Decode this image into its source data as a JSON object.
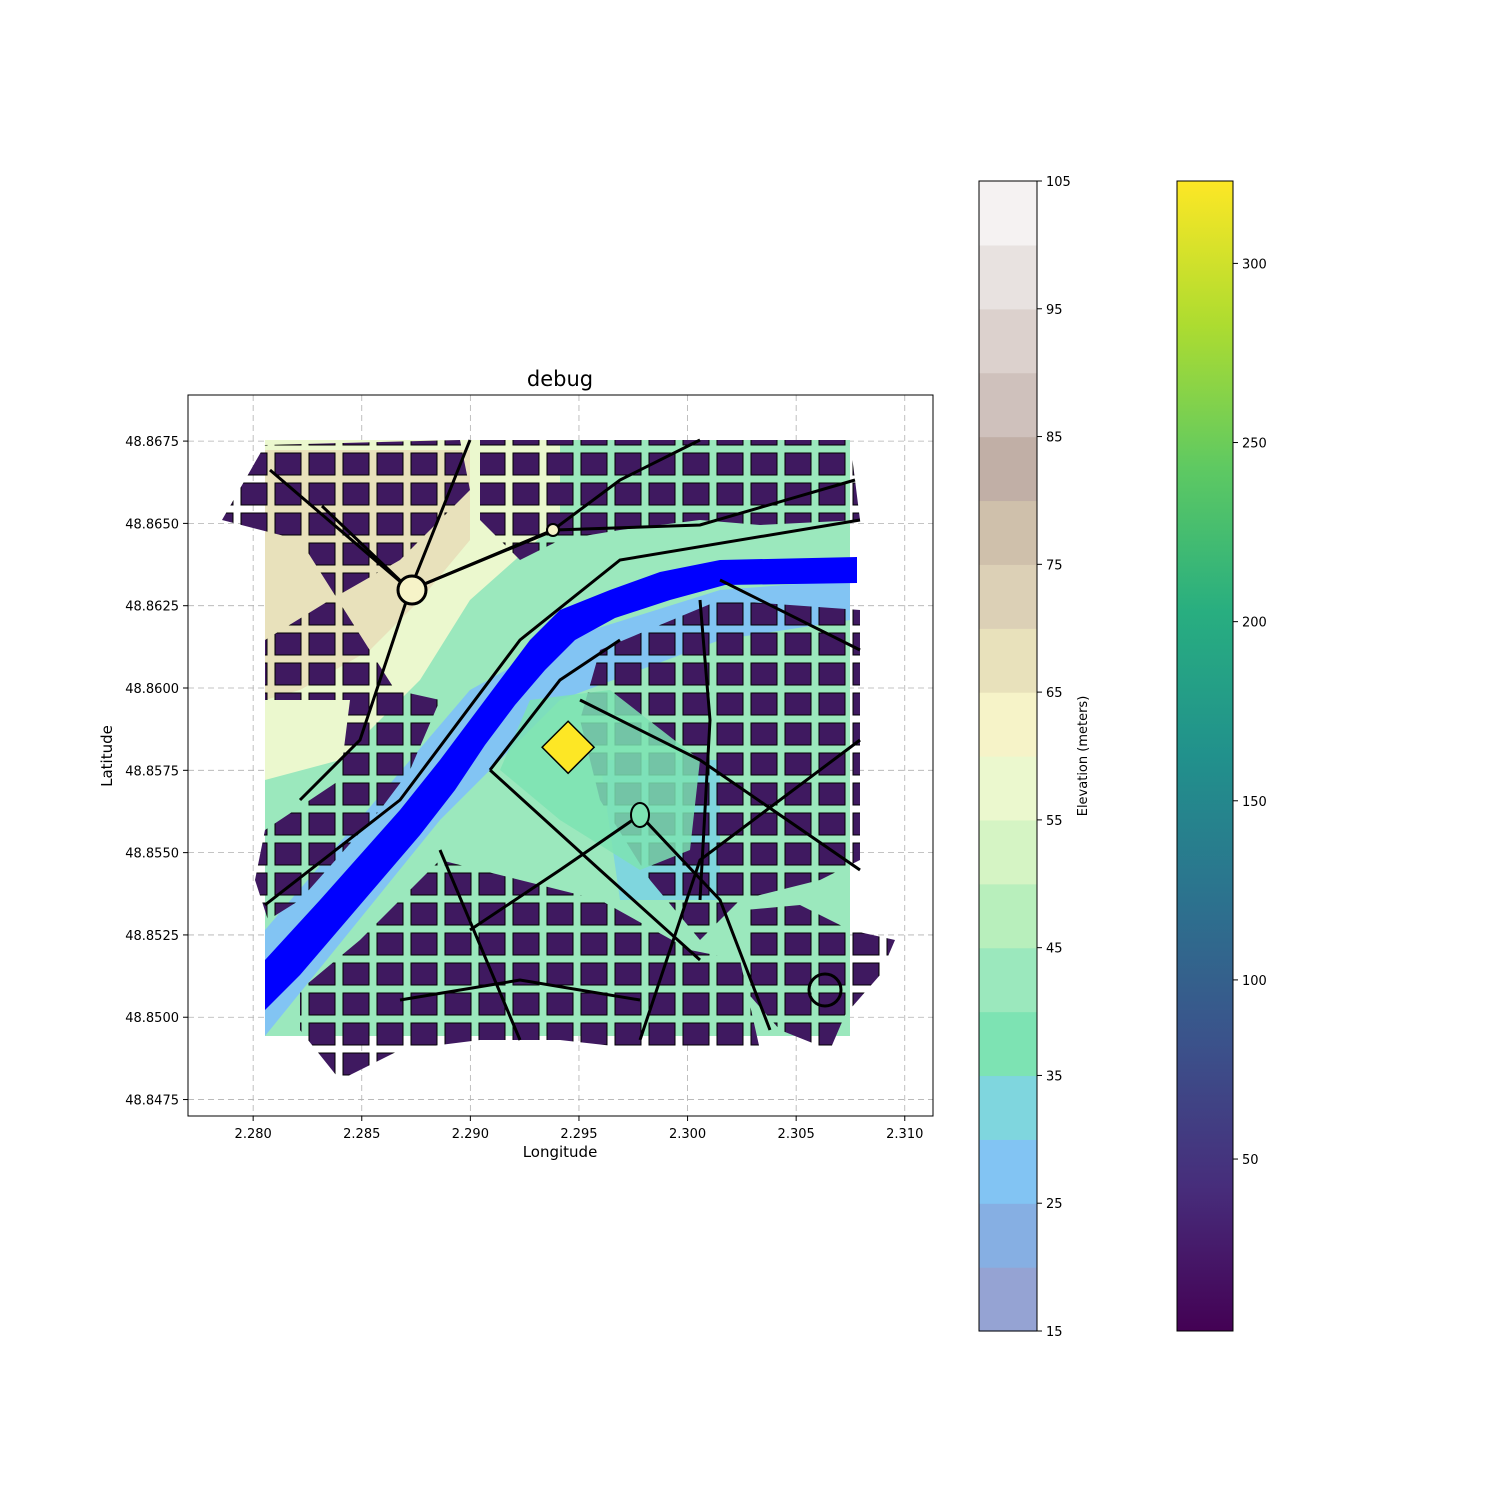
{
  "chart_data": {
    "type": "map",
    "title": "debug",
    "xlabel": "Longitude",
    "ylabel": "Latitude",
    "xlim": [
      2.277,
      2.3113
    ],
    "ylim": [
      48.847,
      48.8689
    ],
    "xticks": [
      2.28,
      2.285,
      2.29,
      2.295,
      2.3,
      2.305,
      2.31
    ],
    "xtick_labels": [
      "2.280",
      "2.285",
      "2.290",
      "2.295",
      "2.300",
      "2.305",
      "2.310"
    ],
    "yticks": [
      48.8475,
      48.85,
      48.8525,
      48.855,
      48.8575,
      48.86,
      48.8625,
      48.865,
      48.8675
    ],
    "ytick_labels": [
      "48.8475",
      "48.8500",
      "48.8525",
      "48.8550",
      "48.8575",
      "48.8600",
      "48.8625",
      "48.8650",
      "48.8675"
    ],
    "grid": true,
    "river": {
      "name": "",
      "color": "#0000ff",
      "path": [
        [
          2.2806,
          48.8502
        ],
        [
          2.2845,
          48.854
        ],
        [
          2.2878,
          48.8572
        ],
        [
          2.29,
          48.86
        ],
        [
          2.293,
          48.8622
        ],
        [
          2.2965,
          48.8637
        ],
        [
          2.301,
          48.8648
        ],
        [
          2.3078,
          48.865
        ]
      ]
    },
    "highlight_marker": {
      "lon": 2.2945,
      "lat": 48.8582,
      "color": "#fde725",
      "shape": "diamond"
    },
    "elevation_colorbar": {
      "label": "Elevation (meters)",
      "min": 15,
      "max": 105,
      "ticks": [
        15,
        25,
        35,
        45,
        55,
        65,
        75,
        85,
        95,
        105
      ],
      "tick_labels": [
        "15",
        "25",
        "35",
        "45",
        "55",
        "65",
        "75",
        "85",
        "95",
        "105"
      ],
      "levels": [
        15,
        20,
        25,
        30,
        35,
        40,
        45,
        50,
        55,
        60,
        65,
        70,
        75,
        80,
        85,
        90,
        95,
        100,
        105
      ],
      "colors": [
        "#95a3d3",
        "#86afe3",
        "#82c4f3",
        "#7fd6de",
        "#7de3b3",
        "#9be8bd",
        "#b8efbc",
        "#d5f4c4",
        "#ebf8ce",
        "#f6f3c8",
        "#e8e1bb",
        "#dcd0b6",
        "#cfc0ab",
        "#c1afa6",
        "#cfc1bc",
        "#dcd1cd",
        "#e8e2e0",
        "#f5f2f2"
      ]
    },
    "building_colorbar": {
      "label": "",
      "colormap": "viridis",
      "min": 2,
      "max": 323,
      "ticks": [
        50,
        100,
        150,
        200,
        250,
        300
      ],
      "tick_labels": [
        "50",
        "100",
        "150",
        "200",
        "250",
        "300"
      ]
    }
  }
}
